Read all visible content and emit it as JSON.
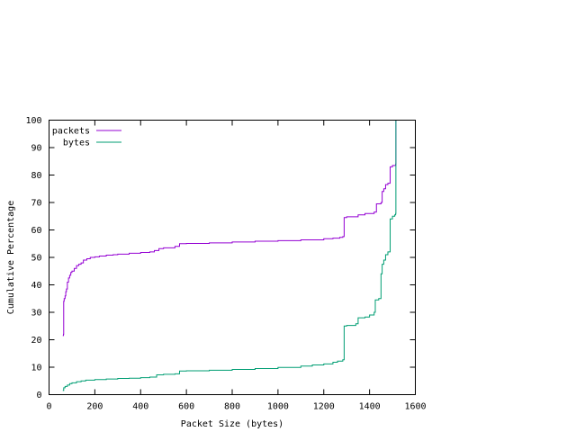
{
  "chart_data": {
    "type": "line",
    "xlabel": "Packet Size (bytes)",
    "ylabel": "Cumulative Percentage",
    "xlim": [
      0,
      1600
    ],
    "ylim": [
      0,
      100
    ],
    "xticks": [
      0,
      200,
      400,
      600,
      800,
      1000,
      1200,
      1400,
      1600
    ],
    "yticks": [
      0,
      10,
      20,
      30,
      40,
      50,
      60,
      70,
      80,
      90,
      100
    ],
    "grid": false,
    "legend_position": "top-left",
    "step": true,
    "series": [
      {
        "name": "packets",
        "color": "#9400d3",
        "points": [
          [
            60,
            21.5
          ],
          [
            62,
            21.5
          ],
          [
            63,
            22
          ],
          [
            64,
            34
          ],
          [
            66,
            35
          ],
          [
            70,
            36
          ],
          [
            73,
            37.5
          ],
          [
            76,
            38.5
          ],
          [
            80,
            41
          ],
          [
            85,
            42.5
          ],
          [
            90,
            43.5
          ],
          [
            95,
            44.5
          ],
          [
            100,
            45
          ],
          [
            110,
            46
          ],
          [
            120,
            47
          ],
          [
            130,
            47.5
          ],
          [
            140,
            48
          ],
          [
            150,
            49
          ],
          [
            165,
            49.5
          ],
          [
            180,
            50
          ],
          [
            200,
            50.2
          ],
          [
            220,
            50.5
          ],
          [
            250,
            50.8
          ],
          [
            280,
            51
          ],
          [
            300,
            51.2
          ],
          [
            350,
            51.5
          ],
          [
            400,
            51.8
          ],
          [
            440,
            52
          ],
          [
            460,
            52.5
          ],
          [
            480,
            53.2
          ],
          [
            500,
            53.5
          ],
          [
            550,
            54
          ],
          [
            570,
            55
          ],
          [
            600,
            55.1
          ],
          [
            700,
            55.3
          ],
          [
            800,
            55.6
          ],
          [
            900,
            55.9
          ],
          [
            1000,
            56.1
          ],
          [
            1100,
            56.4
          ],
          [
            1200,
            56.8
          ],
          [
            1240,
            57
          ],
          [
            1270,
            57.3
          ],
          [
            1283,
            57.6
          ],
          [
            1289,
            64.5
          ],
          [
            1300,
            64.8
          ],
          [
            1350,
            65.5
          ],
          [
            1380,
            66
          ],
          [
            1420,
            66.5
          ],
          [
            1430,
            69.5
          ],
          [
            1450,
            70
          ],
          [
            1455,
            74
          ],
          [
            1462,
            75
          ],
          [
            1470,
            76.5
          ],
          [
            1480,
            77
          ],
          [
            1490,
            83
          ],
          [
            1500,
            83.5
          ],
          [
            1514,
            84
          ],
          [
            1515,
            100
          ]
        ]
      },
      {
        "name": "bytes",
        "color": "#009e73",
        "points": [
          [
            60,
            1.5
          ],
          [
            62,
            1.5
          ],
          [
            64,
            2.5
          ],
          [
            70,
            3
          ],
          [
            80,
            3.5
          ],
          [
            90,
            4
          ],
          [
            100,
            4.3
          ],
          [
            120,
            4.7
          ],
          [
            140,
            5
          ],
          [
            160,
            5.3
          ],
          [
            200,
            5.5
          ],
          [
            250,
            5.7
          ],
          [
            300,
            5.9
          ],
          [
            350,
            6
          ],
          [
            400,
            6.2
          ],
          [
            440,
            6.4
          ],
          [
            470,
            7.2
          ],
          [
            500,
            7.4
          ],
          [
            550,
            7.6
          ],
          [
            570,
            8.6
          ],
          [
            600,
            8.7
          ],
          [
            700,
            8.9
          ],
          [
            800,
            9.2
          ],
          [
            900,
            9.5
          ],
          [
            1000,
            9.9
          ],
          [
            1100,
            10.4
          ],
          [
            1150,
            10.8
          ],
          [
            1200,
            11.2
          ],
          [
            1240,
            11.8
          ],
          [
            1260,
            12.2
          ],
          [
            1283,
            12.7
          ],
          [
            1289,
            25
          ],
          [
            1300,
            25.2
          ],
          [
            1340,
            25.8
          ],
          [
            1350,
            28
          ],
          [
            1380,
            28.3
          ],
          [
            1400,
            29
          ],
          [
            1420,
            30
          ],
          [
            1425,
            34.5
          ],
          [
            1440,
            35
          ],
          [
            1450,
            44
          ],
          [
            1455,
            47.5
          ],
          [
            1462,
            49
          ],
          [
            1470,
            51
          ],
          [
            1480,
            52
          ],
          [
            1490,
            64
          ],
          [
            1500,
            65
          ],
          [
            1510,
            65.5
          ],
          [
            1514,
            66
          ],
          [
            1515,
            100
          ]
        ]
      }
    ]
  }
}
